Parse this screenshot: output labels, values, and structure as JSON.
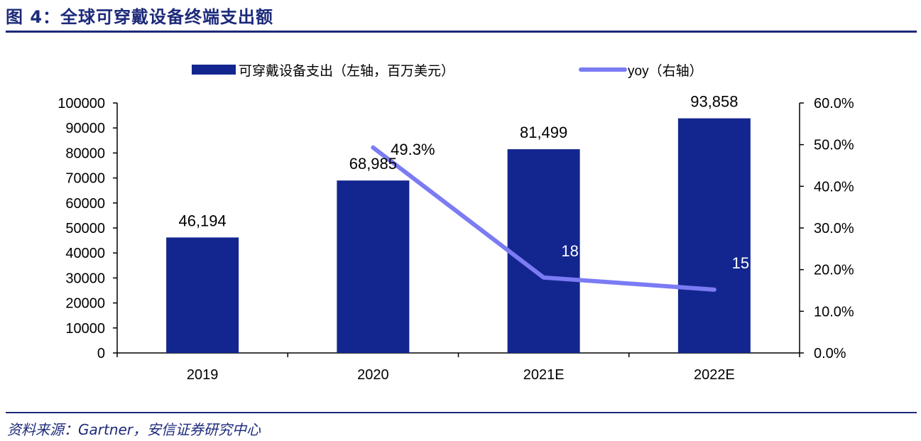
{
  "header": {
    "title": "图 4：全球可穿戴设备终端支出额"
  },
  "footer": {
    "source": "资料来源：Gartner，安信证券研究中心"
  },
  "colors": {
    "bar": "#13268f",
    "line": "#7b7bf4",
    "rule": "#1c2a7a"
  },
  "chart_data": {
    "type": "bar",
    "categories": [
      "2019",
      "2020",
      "2021E",
      "2022E"
    ],
    "series": [
      {
        "name": "可穿戴设备支出（左轴，百万美元）",
        "type": "bar",
        "axis": "left",
        "values": [
          46194,
          68985,
          81499,
          93858
        ],
        "labels": [
          "46,194",
          "68,985",
          "81,499",
          "93,858"
        ]
      },
      {
        "name": "yoy（右轴）",
        "type": "line",
        "axis": "right",
        "x": [
          "2020",
          "2021E",
          "2022E"
        ],
        "values": [
          49.3,
          18.1,
          15.2
        ],
        "labels": [
          "49.3%",
          "18.1%",
          "15.2%"
        ]
      }
    ],
    "y_left": {
      "lim": [
        0,
        100000
      ],
      "ticks": [
        "0",
        "10000",
        "20000",
        "30000",
        "40000",
        "50000",
        "60000",
        "70000",
        "80000",
        "90000",
        "100000"
      ]
    },
    "y_right": {
      "lim": [
        0,
        60
      ],
      "ticks": [
        "0.0%",
        "10.0%",
        "20.0%",
        "30.0%",
        "40.0%",
        "50.0%",
        "60.0%"
      ]
    },
    "legend": "top",
    "grid": false
  }
}
